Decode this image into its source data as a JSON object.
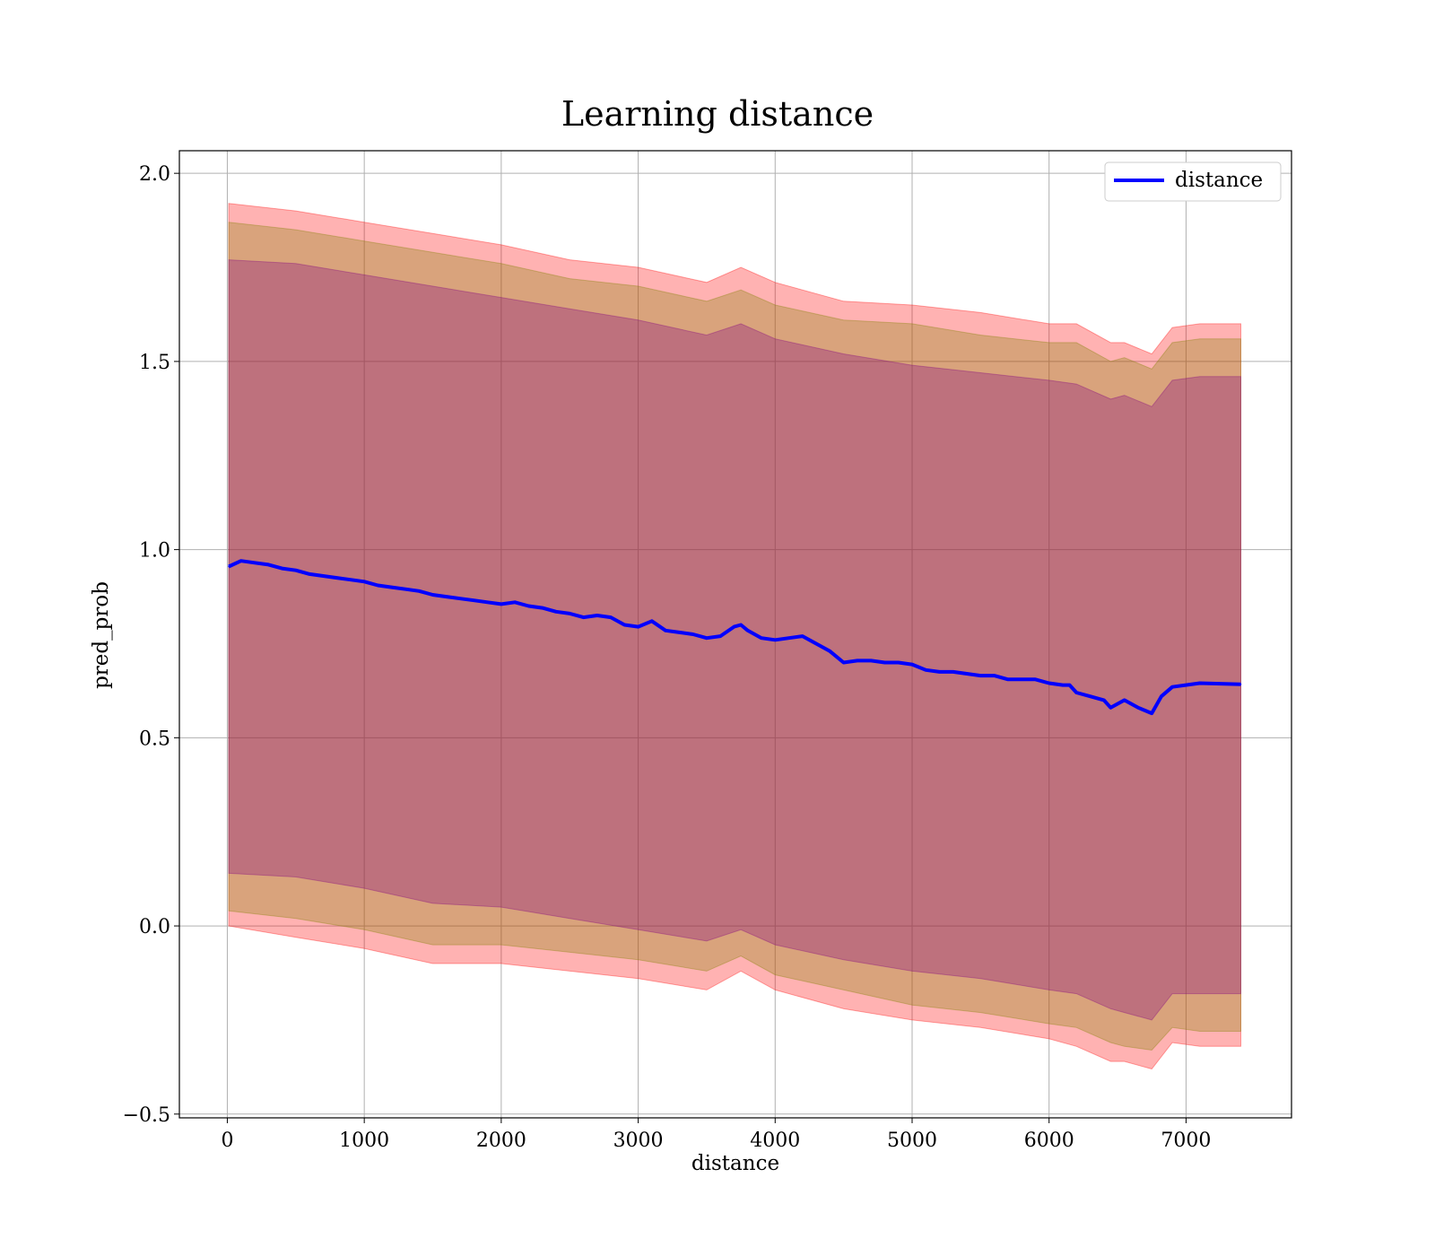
{
  "chart_data": {
    "type": "line",
    "title": "Learning distance",
    "xlabel": "distance",
    "ylabel": "pred_prob",
    "xlim": [
      -350,
      7770
    ],
    "ylim": [
      -0.51,
      2.06
    ],
    "xticks": [
      0,
      1000,
      2000,
      3000,
      4000,
      5000,
      6000,
      7000
    ],
    "xtick_labels": [
      "0",
      "1000",
      "2000",
      "3000",
      "4000",
      "5000",
      "6000",
      "7000"
    ],
    "yticks": [
      -0.5,
      0.0,
      0.5,
      1.0,
      1.5,
      2.0
    ],
    "ytick_labels": [
      "−0.5",
      "0.0",
      "0.5",
      "1.0",
      "1.5",
      "2.0"
    ],
    "grid": true,
    "legend_position": "top-right",
    "series": [
      {
        "name": "distance",
        "color": "#0000ff",
        "x": [
          10,
          100,
          200,
          300,
          400,
          500,
          600,
          700,
          800,
          900,
          1000,
          1100,
          1200,
          1300,
          1400,
          1500,
          1600,
          1700,
          1800,
          1900,
          2000,
          2100,
          2200,
          2300,
          2400,
          2500,
          2600,
          2700,
          2800,
          2900,
          3000,
          3100,
          3200,
          3300,
          3400,
          3500,
          3600,
          3700,
          3750,
          3800,
          3900,
          4000,
          4100,
          4200,
          4300,
          4400,
          4500,
          4600,
          4700,
          4800,
          4900,
          5000,
          5100,
          5200,
          5300,
          5400,
          5500,
          5600,
          5700,
          5800,
          5900,
          6000,
          6100,
          6150,
          6200,
          6300,
          6400,
          6450,
          6550,
          6650,
          6750,
          6820,
          6900,
          7100,
          7400
        ],
        "values": [
          0.955,
          0.97,
          0.965,
          0.96,
          0.95,
          0.945,
          0.935,
          0.93,
          0.925,
          0.92,
          0.915,
          0.905,
          0.9,
          0.895,
          0.89,
          0.88,
          0.875,
          0.87,
          0.865,
          0.86,
          0.855,
          0.86,
          0.85,
          0.845,
          0.835,
          0.83,
          0.82,
          0.825,
          0.82,
          0.8,
          0.795,
          0.81,
          0.785,
          0.78,
          0.775,
          0.765,
          0.77,
          0.795,
          0.8,
          0.785,
          0.765,
          0.76,
          0.765,
          0.77,
          0.75,
          0.73,
          0.7,
          0.705,
          0.705,
          0.7,
          0.7,
          0.695,
          0.68,
          0.675,
          0.675,
          0.67,
          0.665,
          0.665,
          0.655,
          0.655,
          0.655,
          0.645,
          0.64,
          0.64,
          0.62,
          0.61,
          0.6,
          0.58,
          0.6,
          0.58,
          0.565,
          0.61,
          0.635,
          0.645,
          0.642
        ]
      }
    ],
    "bands": [
      {
        "color": "#ff0000",
        "opacity": 0.3,
        "x": [
          10,
          500,
          1000,
          1500,
          2000,
          2500,
          3000,
          3500,
          3750,
          4000,
          4500,
          5000,
          5500,
          6000,
          6200,
          6450,
          6550,
          6750,
          6900,
          7100,
          7400
        ],
        "upper": [
          1.92,
          1.9,
          1.87,
          1.84,
          1.81,
          1.77,
          1.75,
          1.71,
          1.75,
          1.71,
          1.66,
          1.65,
          1.63,
          1.6,
          1.6,
          1.55,
          1.55,
          1.52,
          1.59,
          1.6,
          1.6
        ],
        "lower": [
          0.0,
          -0.03,
          -0.06,
          -0.1,
          -0.1,
          -0.12,
          -0.14,
          -0.17,
          -0.12,
          -0.17,
          -0.22,
          -0.25,
          -0.27,
          -0.3,
          -0.32,
          -0.36,
          -0.36,
          -0.38,
          -0.31,
          -0.32,
          -0.32
        ]
      },
      {
        "color": "#808000",
        "opacity": 0.3,
        "x": [
          10,
          500,
          1000,
          1500,
          2000,
          2500,
          3000,
          3500,
          3750,
          4000,
          4500,
          5000,
          5500,
          6000,
          6200,
          6450,
          6550,
          6750,
          6900,
          7100,
          7400
        ],
        "upper": [
          1.87,
          1.85,
          1.82,
          1.79,
          1.76,
          1.72,
          1.7,
          1.66,
          1.69,
          1.65,
          1.61,
          1.6,
          1.57,
          1.55,
          1.55,
          1.5,
          1.51,
          1.48,
          1.55,
          1.56,
          1.56
        ],
        "lower": [
          0.04,
          0.02,
          -0.01,
          -0.05,
          -0.05,
          -0.07,
          -0.09,
          -0.12,
          -0.08,
          -0.13,
          -0.17,
          -0.21,
          -0.23,
          -0.26,
          -0.27,
          -0.31,
          -0.32,
          -0.33,
          -0.27,
          -0.28,
          -0.28
        ]
      },
      {
        "color": "#800080",
        "opacity": 0.3,
        "x": [
          10,
          500,
          1000,
          1500,
          2000,
          2500,
          3000,
          3500,
          3750,
          4000,
          4500,
          5000,
          5500,
          6000,
          6200,
          6450,
          6550,
          6750,
          6900,
          7100,
          7400
        ],
        "upper": [
          1.77,
          1.76,
          1.73,
          1.7,
          1.67,
          1.64,
          1.61,
          1.57,
          1.6,
          1.56,
          1.52,
          1.49,
          1.47,
          1.45,
          1.44,
          1.4,
          1.41,
          1.38,
          1.45,
          1.46,
          1.46
        ],
        "lower": [
          0.14,
          0.13,
          0.1,
          0.06,
          0.05,
          0.02,
          -0.01,
          -0.04,
          -0.01,
          -0.05,
          -0.09,
          -0.12,
          -0.14,
          -0.17,
          -0.18,
          -0.22,
          -0.23,
          -0.25,
          -0.18,
          -0.18,
          -0.18
        ]
      }
    ]
  }
}
